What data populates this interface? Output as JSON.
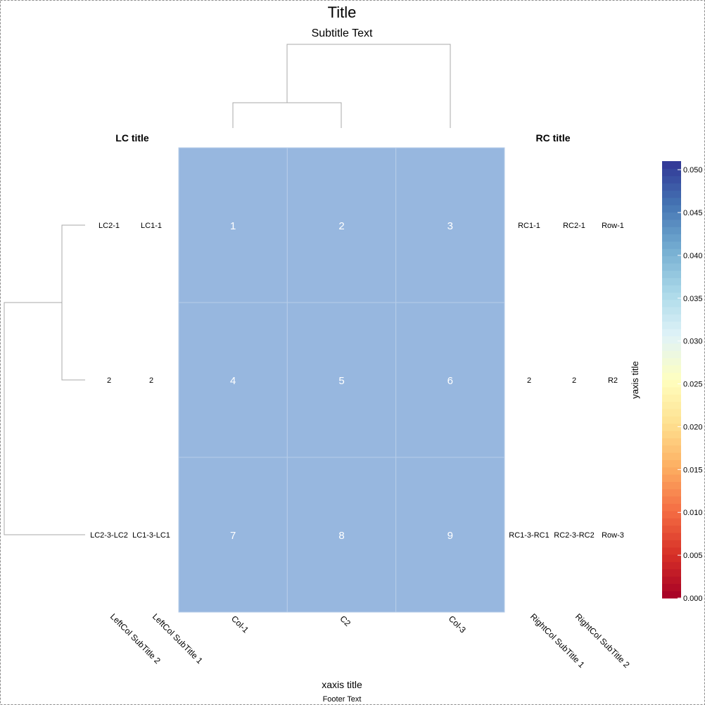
{
  "chart_data": {
    "type": "heatmap",
    "title": "Title",
    "subtitle": "Subtitle Text",
    "footer": "Footer Text",
    "xlabel": "xaxis title",
    "ylabel": "yaxis title",
    "columns": [
      "Col-1",
      "C2",
      "Col-3"
    ],
    "rows": [
      {
        "left_cols": [
          "LC2-1",
          "LC1-1"
        ],
        "cells": [
          1,
          2,
          3
        ],
        "right_cols": [
          "RC1-1",
          "RC2-1",
          "Row-1"
        ]
      },
      {
        "left_cols": [
          "2",
          "2"
        ],
        "cells": [
          4,
          5,
          6
        ],
        "right_cols": [
          "2",
          "2",
          "R2"
        ]
      },
      {
        "left_cols": [
          "LC2-3-LC2",
          "LC1-3-LC1"
        ],
        "cells": [
          7,
          8,
          9
        ],
        "right_cols": [
          "RC1-3-RC1",
          "RC2-3-RC2",
          "Row-3"
        ]
      }
    ],
    "cell_color": "#97b7df",
    "cell_text_color": "#ffffff",
    "left_columns_title": "LC title",
    "right_columns_title": "RC title",
    "left_column_subtitles": [
      "LeftCol SubTitle 2",
      "LeftCol SubTitle 1"
    ],
    "right_column_subtitles": [
      "RightCol SubTitle 1",
      "RightCol SubTitle 2"
    ],
    "column_dendrogram": true,
    "row_dendrogram": true,
    "colorbar": {
      "palette": "RdYlBu",
      "min": 0.0,
      "max": 0.051,
      "ticks": [
        "0.000",
        "0.005",
        "0.010",
        "0.015",
        "0.020",
        "0.025",
        "0.030",
        "0.035",
        "0.040",
        "0.045",
        "0.050"
      ]
    }
  }
}
